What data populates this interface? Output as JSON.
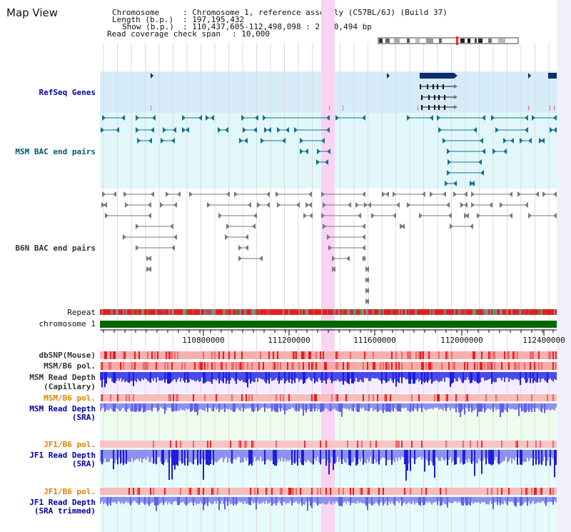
{
  "page_title": "Map View",
  "info": {
    "chromosome_key": "Chromosome",
    "chromosome_value": ": Chromosome 1, reference assembly (C57BL/6J) (Build 37)",
    "length_key": "Length (b.p.)",
    "length_value": ": 197,195,432",
    "show_key": "Show (b.p.)",
    "show_value": ": 110,437,605-112,498,098 : 2,060,494 bp",
    "coverage_key": "Read coverage check span",
    "coverage_value": ": 10,000"
  },
  "tracks": {
    "refseq": "RefSeq Genes",
    "msm_bac": "MSM BAC end pairs",
    "b6n_bac": "B6N BAC end pairs",
    "repeat": "Repeat",
    "chromosome": "chromosome 1",
    "dbsnp": "dbSNP(Mouse)",
    "msm_b6_pol": "MSM/B6 pol.",
    "msm_read_depth_cap_1": "MSM Read Depth",
    "msm_read_depth_cap_2": "(Capillary)",
    "msm_b6_pol_orange": "MSM/B6 pol.",
    "msm_read_depth_sra_1": "MSM Read Depth",
    "msm_read_depth_sra_2": "(SRA)",
    "jf1_b6_pol_1": "JF1/B6 pol.",
    "jf1_read_depth_1": "JF1 Read Depth",
    "jf1_read_depth_sra": "(SRA)",
    "jf1_b6_pol_2": "JF1/B6 pol.",
    "jf1_read_depth_2": "JF1 Read Depth",
    "jf1_read_depth_trimmed": "(SRA trimmed)"
  },
  "axis": {
    "ticks": [
      "110800000",
      "111200000",
      "111600000",
      "112000000",
      "112400000"
    ]
  },
  "colors": {
    "blue_label": "#0000aa",
    "teal_label": "#005577",
    "gray_label": "#333333",
    "orange_label": "#e08000",
    "highlight": "#f9d3f2",
    "refseq_bg": "#d6ecf8",
    "msm_bg": "#e1f7fa",
    "b6n_bg": "#ffffff",
    "depth_blue": "#1e1eda",
    "depth_light": "#8f8ff0",
    "chrom_green": "#006600"
  }
}
